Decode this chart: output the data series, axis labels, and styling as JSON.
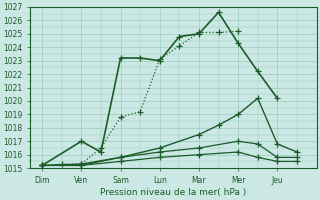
{
  "title": "Pression niveau de la mer( hPa )",
  "ylabel_values": [
    1015,
    1016,
    1017,
    1018,
    1019,
    1020,
    1021,
    1022,
    1023,
    1024,
    1025,
    1026,
    1027
  ],
  "x_labels": [
    "Dim",
    "Ven",
    "Sam",
    "Lun",
    "Mar",
    "Mer",
    "Jeu"
  ],
  "x_positions": [
    0,
    1,
    2,
    3,
    4,
    5,
    6
  ],
  "ylim": [
    1015,
    1027
  ],
  "xlim": [
    -0.3,
    7.0
  ],
  "background_color": "#cce8e4",
  "grid_color": "#99ccbb",
  "line_color": "#1a5c28",
  "series": [
    {
      "x": [
        0.0,
        1.0,
        1.5,
        2.0,
        2.5,
        3.0,
        3.5,
        4.0,
        4.5,
        5.0,
        5.5,
        6.0
      ],
      "y": [
        1015.2,
        1017.0,
        1016.2,
        1023.2,
        1023.2,
        1023.0,
        1024.8,
        1025.0,
        1026.6,
        1024.3,
        1022.2,
        1020.2
      ],
      "marker": "+",
      "markersize": 4,
      "linewidth": 1.2,
      "linestyle": "-"
    },
    {
      "x": [
        0.0,
        0.5,
        1.0,
        1.5,
        2.0,
        2.5,
        3.0,
        3.5,
        4.0,
        4.5,
        5.0
      ],
      "y": [
        1015.2,
        1015.3,
        1015.3,
        1016.5,
        1018.8,
        1019.2,
        1023.1,
        1024.1,
        1025.1,
        1025.1,
        1025.2
      ],
      "marker": "+",
      "markersize": 4,
      "linewidth": 0.9,
      "linestyle": ":"
    },
    {
      "x": [
        0.0,
        1.0,
        2.0,
        3.0,
        4.0,
        4.5,
        5.0,
        5.5,
        6.0,
        6.5
      ],
      "y": [
        1015.2,
        1015.3,
        1015.8,
        1016.5,
        1017.5,
        1018.2,
        1019.0,
        1020.2,
        1016.8,
        1016.2
      ],
      "marker": "+",
      "markersize": 4,
      "linewidth": 1.0,
      "linestyle": "-"
    },
    {
      "x": [
        0.0,
        1.0,
        2.0,
        3.0,
        4.0,
        5.0,
        5.5,
        6.0,
        6.5
      ],
      "y": [
        1015.2,
        1015.2,
        1015.8,
        1016.2,
        1016.5,
        1017.0,
        1016.8,
        1015.8,
        1015.8
      ],
      "marker": "+",
      "markersize": 4,
      "linewidth": 0.9,
      "linestyle": "-"
    },
    {
      "x": [
        0.0,
        1.0,
        2.0,
        3.0,
        4.0,
        5.0,
        5.5,
        6.0,
        6.5
      ],
      "y": [
        1015.2,
        1015.2,
        1015.5,
        1015.8,
        1016.0,
        1016.2,
        1015.8,
        1015.5,
        1015.5
      ],
      "marker": "+",
      "markersize": 4,
      "linewidth": 0.9,
      "linestyle": "-"
    }
  ],
  "dpi": 100,
  "figsize": [
    3.2,
    2.0
  ]
}
